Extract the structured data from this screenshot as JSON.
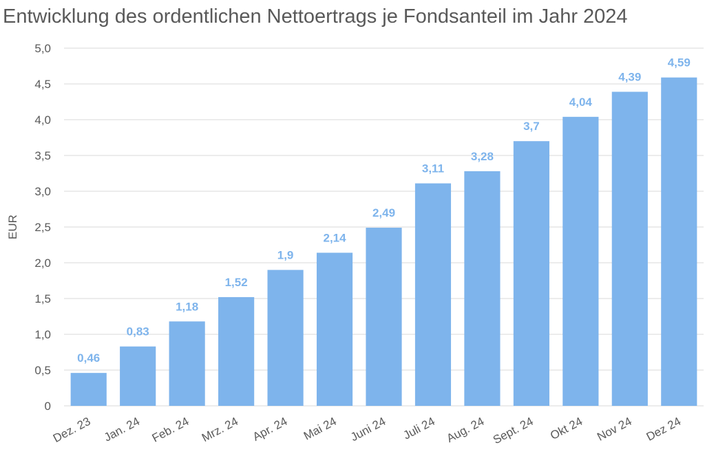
{
  "chart_data": {
    "type": "bar",
    "title": "Entwicklung des ordentlichen Nettoertrags je Fondsanteil im Jahr 2024",
    "xlabel": "",
    "ylabel": "EUR",
    "ylim": [
      0,
      5
    ],
    "yticks": [
      "0",
      "0,5",
      "1,0",
      "1,5",
      "2,0",
      "2,5",
      "3,0",
      "3,5",
      "4,0",
      "4,5",
      "5,0"
    ],
    "grid": true,
    "legend": "none",
    "bar_color": "#7eb4ec",
    "label_color": "#7eb4ec",
    "categories": [
      "Dez. 23",
      "Jan. 24",
      "Feb. 24",
      "Mrz. 24",
      "Apr. 24",
      "Mai 24",
      "Juni 24",
      "Juli 24",
      "Aug. 24",
      "Sept. 24",
      "Okt 24",
      "Nov 24",
      "Dez 24"
    ],
    "values": [
      0.46,
      0.83,
      1.18,
      1.52,
      1.9,
      2.14,
      2.49,
      3.11,
      3.28,
      3.7,
      4.04,
      4.39,
      4.59
    ],
    "data_labels": [
      "0,46",
      "0,83",
      "1,18",
      "1,52",
      "1,9",
      "2,14",
      "2,49",
      "3,11",
      "3,28",
      "3,7",
      "4,04",
      "4,39",
      "4,59"
    ]
  }
}
